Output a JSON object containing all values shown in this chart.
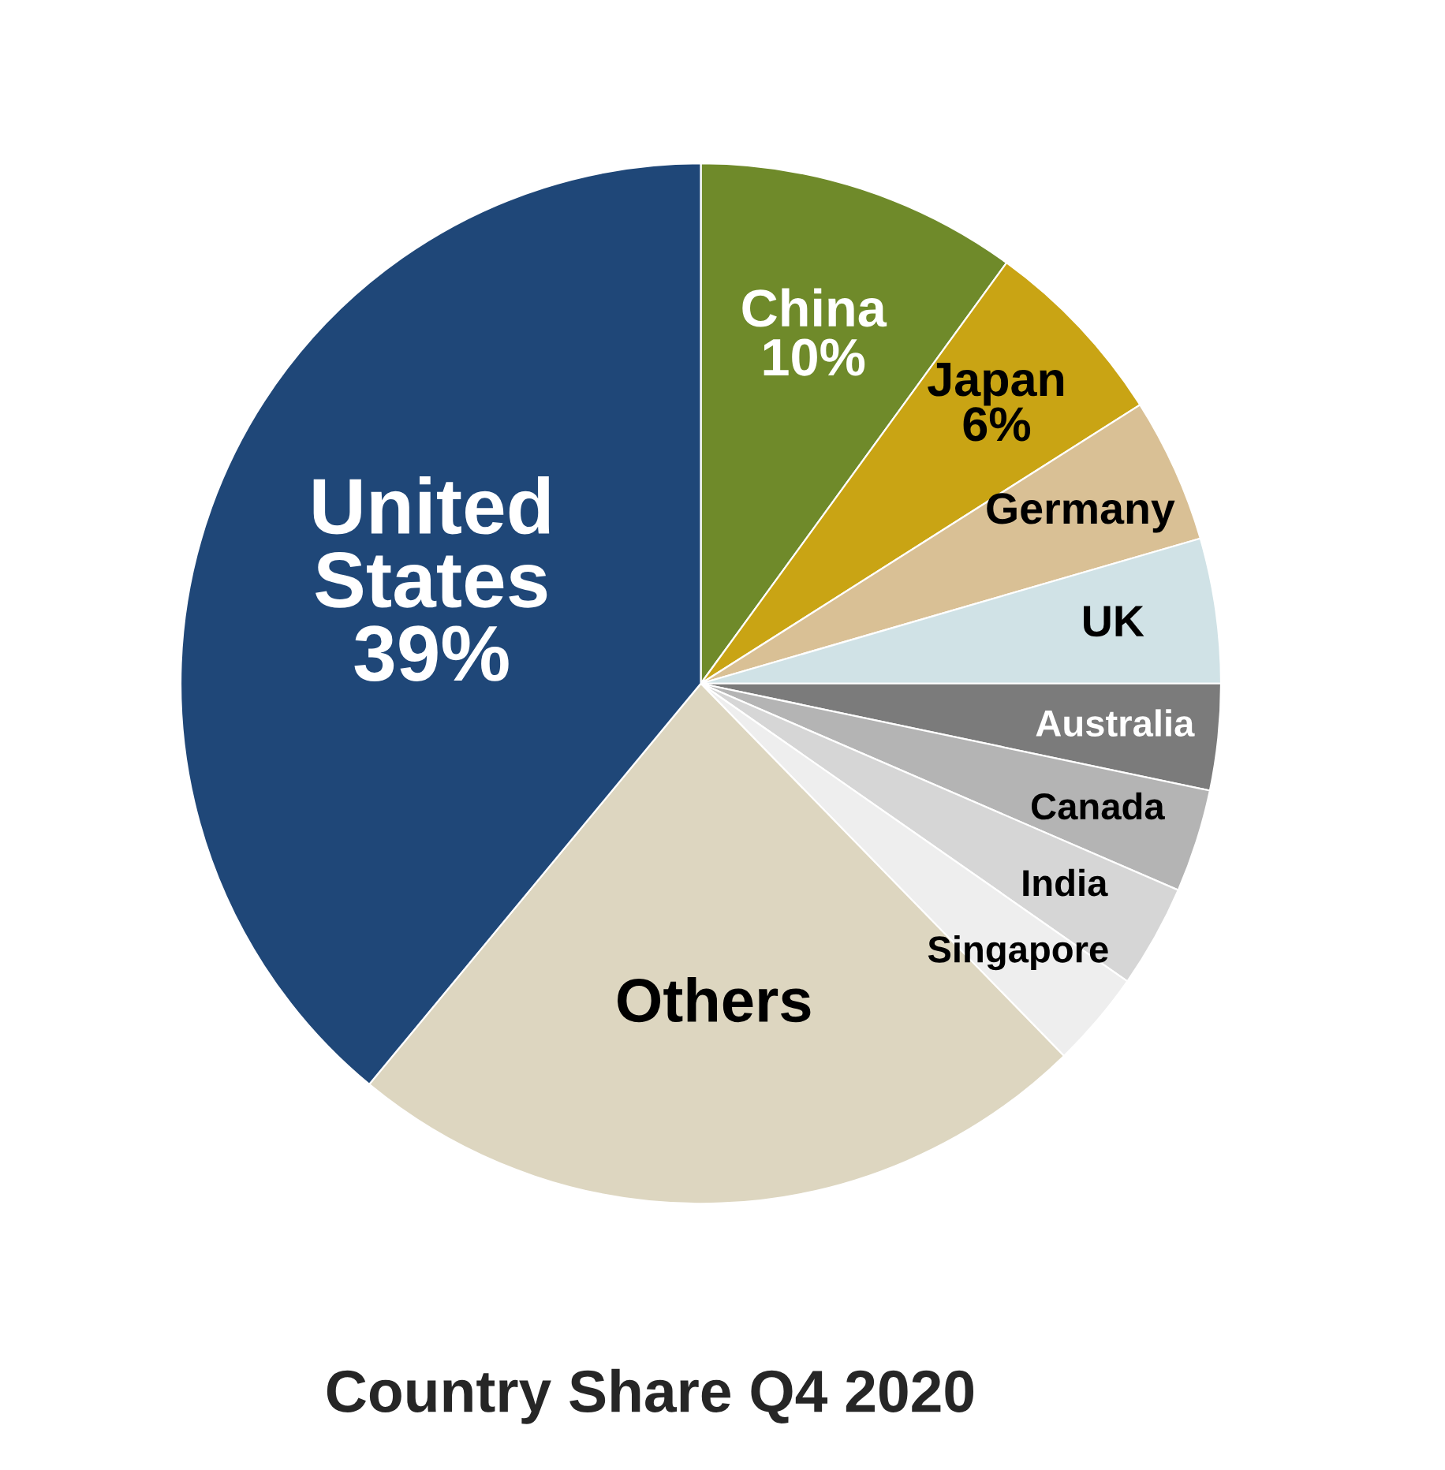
{
  "chart_data": {
    "type": "pie",
    "title": "Country Share Q4 2020",
    "categories": [
      "China",
      "Japan",
      "Germany",
      "UK",
      "Australia",
      "Canada",
      "India",
      "Singapore",
      "Others",
      "United States"
    ],
    "values": [
      10,
      6,
      4.5,
      4.5,
      3.3,
      3.2,
      3.2,
      3,
      23.3,
      39
    ],
    "value_labels": [
      "10%",
      "6%",
      null,
      null,
      null,
      null,
      null,
      null,
      null,
      "39%"
    ],
    "colors": [
      "#6f8a2a",
      "#c9a414",
      "#d9c095",
      "#d0e2e6",
      "#7b7b7b",
      "#b4b4b4",
      "#d6d6d6",
      "#eeeeee",
      "#ddd6c0",
      "#1f4778"
    ],
    "legend": false
  }
}
